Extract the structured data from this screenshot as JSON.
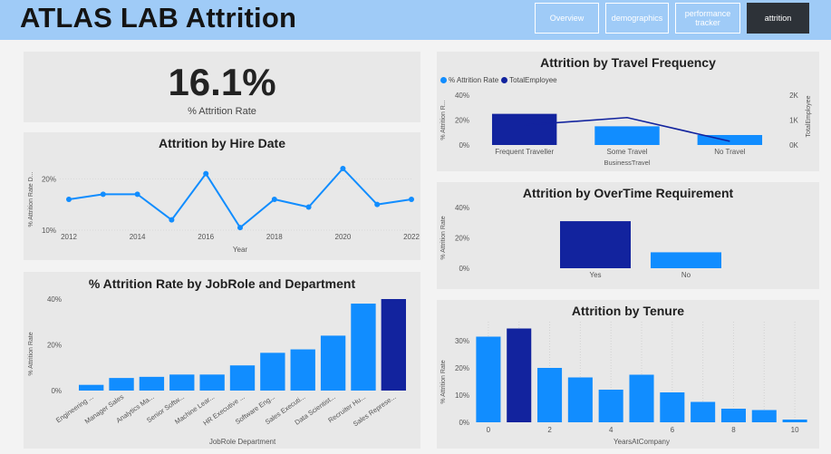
{
  "header": {
    "title": "ATLAS LAB Attrition",
    "nav": [
      {
        "label": "Overview",
        "active": false
      },
      {
        "label": "demographics",
        "active": false
      },
      {
        "label": "performance tracker",
        "active": false
      },
      {
        "label": "attrition",
        "active": true
      }
    ]
  },
  "colors": {
    "light_blue": "#118dff",
    "dark_blue": "#12239e",
    "header": "#9fcbf7"
  },
  "kpi": {
    "value": "16.1%",
    "label": "% Attrition Rate"
  },
  "chart_data": [
    {
      "id": "hire",
      "type": "line",
      "title": "Attrition by Hire Date",
      "xlabel": "Year",
      "ylabel": "% Attrition Rate D...",
      "x": [
        2012,
        2013,
        2014,
        2015,
        2016,
        2017,
        2018,
        2019,
        2020,
        2021,
        2022
      ],
      "values": [
        16,
        17,
        17,
        12,
        21,
        10.5,
        16,
        14.5,
        22,
        15,
        16
      ],
      "xticks": [
        "2012",
        "2014",
        "2016",
        "2018",
        "2020",
        "2022"
      ],
      "ytick_labels": [
        "10%",
        "20%"
      ],
      "ylim": [
        10,
        22
      ]
    },
    {
      "id": "jobrole",
      "type": "bar",
      "title": "% Attrition Rate by JobRole and Department",
      "xlabel": "JobRole Department",
      "ylabel": "% Attrition Rate",
      "categories": [
        "Engineering ...",
        "Manager Sales",
        "Analytics Ma...",
        "Senior Softw...",
        "Machine Lear...",
        "HR Executive ...",
        "Software Eng...",
        "Sales Executi...",
        "Data Scientist...",
        "Recruiter Hu...",
        "Sales Represe..."
      ],
      "values": [
        2.5,
        5.5,
        6,
        7,
        7,
        11,
        16.5,
        18,
        24,
        38,
        40
      ],
      "highlight_index": 10,
      "ytick_labels": [
        "0%",
        "20%",
        "40%"
      ],
      "ylim": [
        0,
        40
      ]
    },
    {
      "id": "travel",
      "type": "bar",
      "title": "Attrition by Travel Frequency",
      "xlabel": "BusinessTravel",
      "ylabel": "% Attrition R...",
      "y2label": "TotalEmployee",
      "legend": [
        "% Attrition Rate",
        "TotalEmployee"
      ],
      "categories": [
        "Frequent Traveller",
        "Some Travel",
        "No Travel"
      ],
      "values": [
        25,
        15,
        8
      ],
      "line_values": [
        800,
        1100,
        150
      ],
      "highlight_index": 0,
      "ytick_labels": [
        "0%",
        "20%",
        "40%"
      ],
      "y2tick_labels": [
        "0K",
        "1K",
        "2K"
      ],
      "ylim": [
        0,
        40
      ],
      "y2lim": [
        0,
        2000
      ]
    },
    {
      "id": "overtime",
      "type": "bar",
      "title": "Attrition by OverTime Requirement",
      "xlabel": "",
      "ylabel": "% Attrition Rate",
      "categories": [
        "Yes",
        "No"
      ],
      "values": [
        31,
        10.5
      ],
      "highlight_index": 0,
      "ytick_labels": [
        "0%",
        "20%",
        "40%"
      ],
      "ylim": [
        0,
        40
      ]
    },
    {
      "id": "tenure",
      "type": "bar",
      "title": "Attrition by Tenure",
      "xlabel": "YearsAtCompany",
      "ylabel": "% Attrition Rate",
      "categories": [
        "0",
        "1",
        "2",
        "3",
        "4",
        "5",
        "6",
        "7",
        "8",
        "9",
        "10"
      ],
      "xtick_labels": [
        "0",
        "2",
        "4",
        "6",
        "8",
        "10"
      ],
      "values": [
        31.5,
        34.5,
        20,
        16.5,
        12,
        17.5,
        11,
        7.5,
        5,
        4.5,
        1
      ],
      "highlight_index": 1,
      "ytick_labels": [
        "0%",
        "10%",
        "20%",
        "30%"
      ],
      "ylim": [
        0,
        35
      ]
    }
  ]
}
